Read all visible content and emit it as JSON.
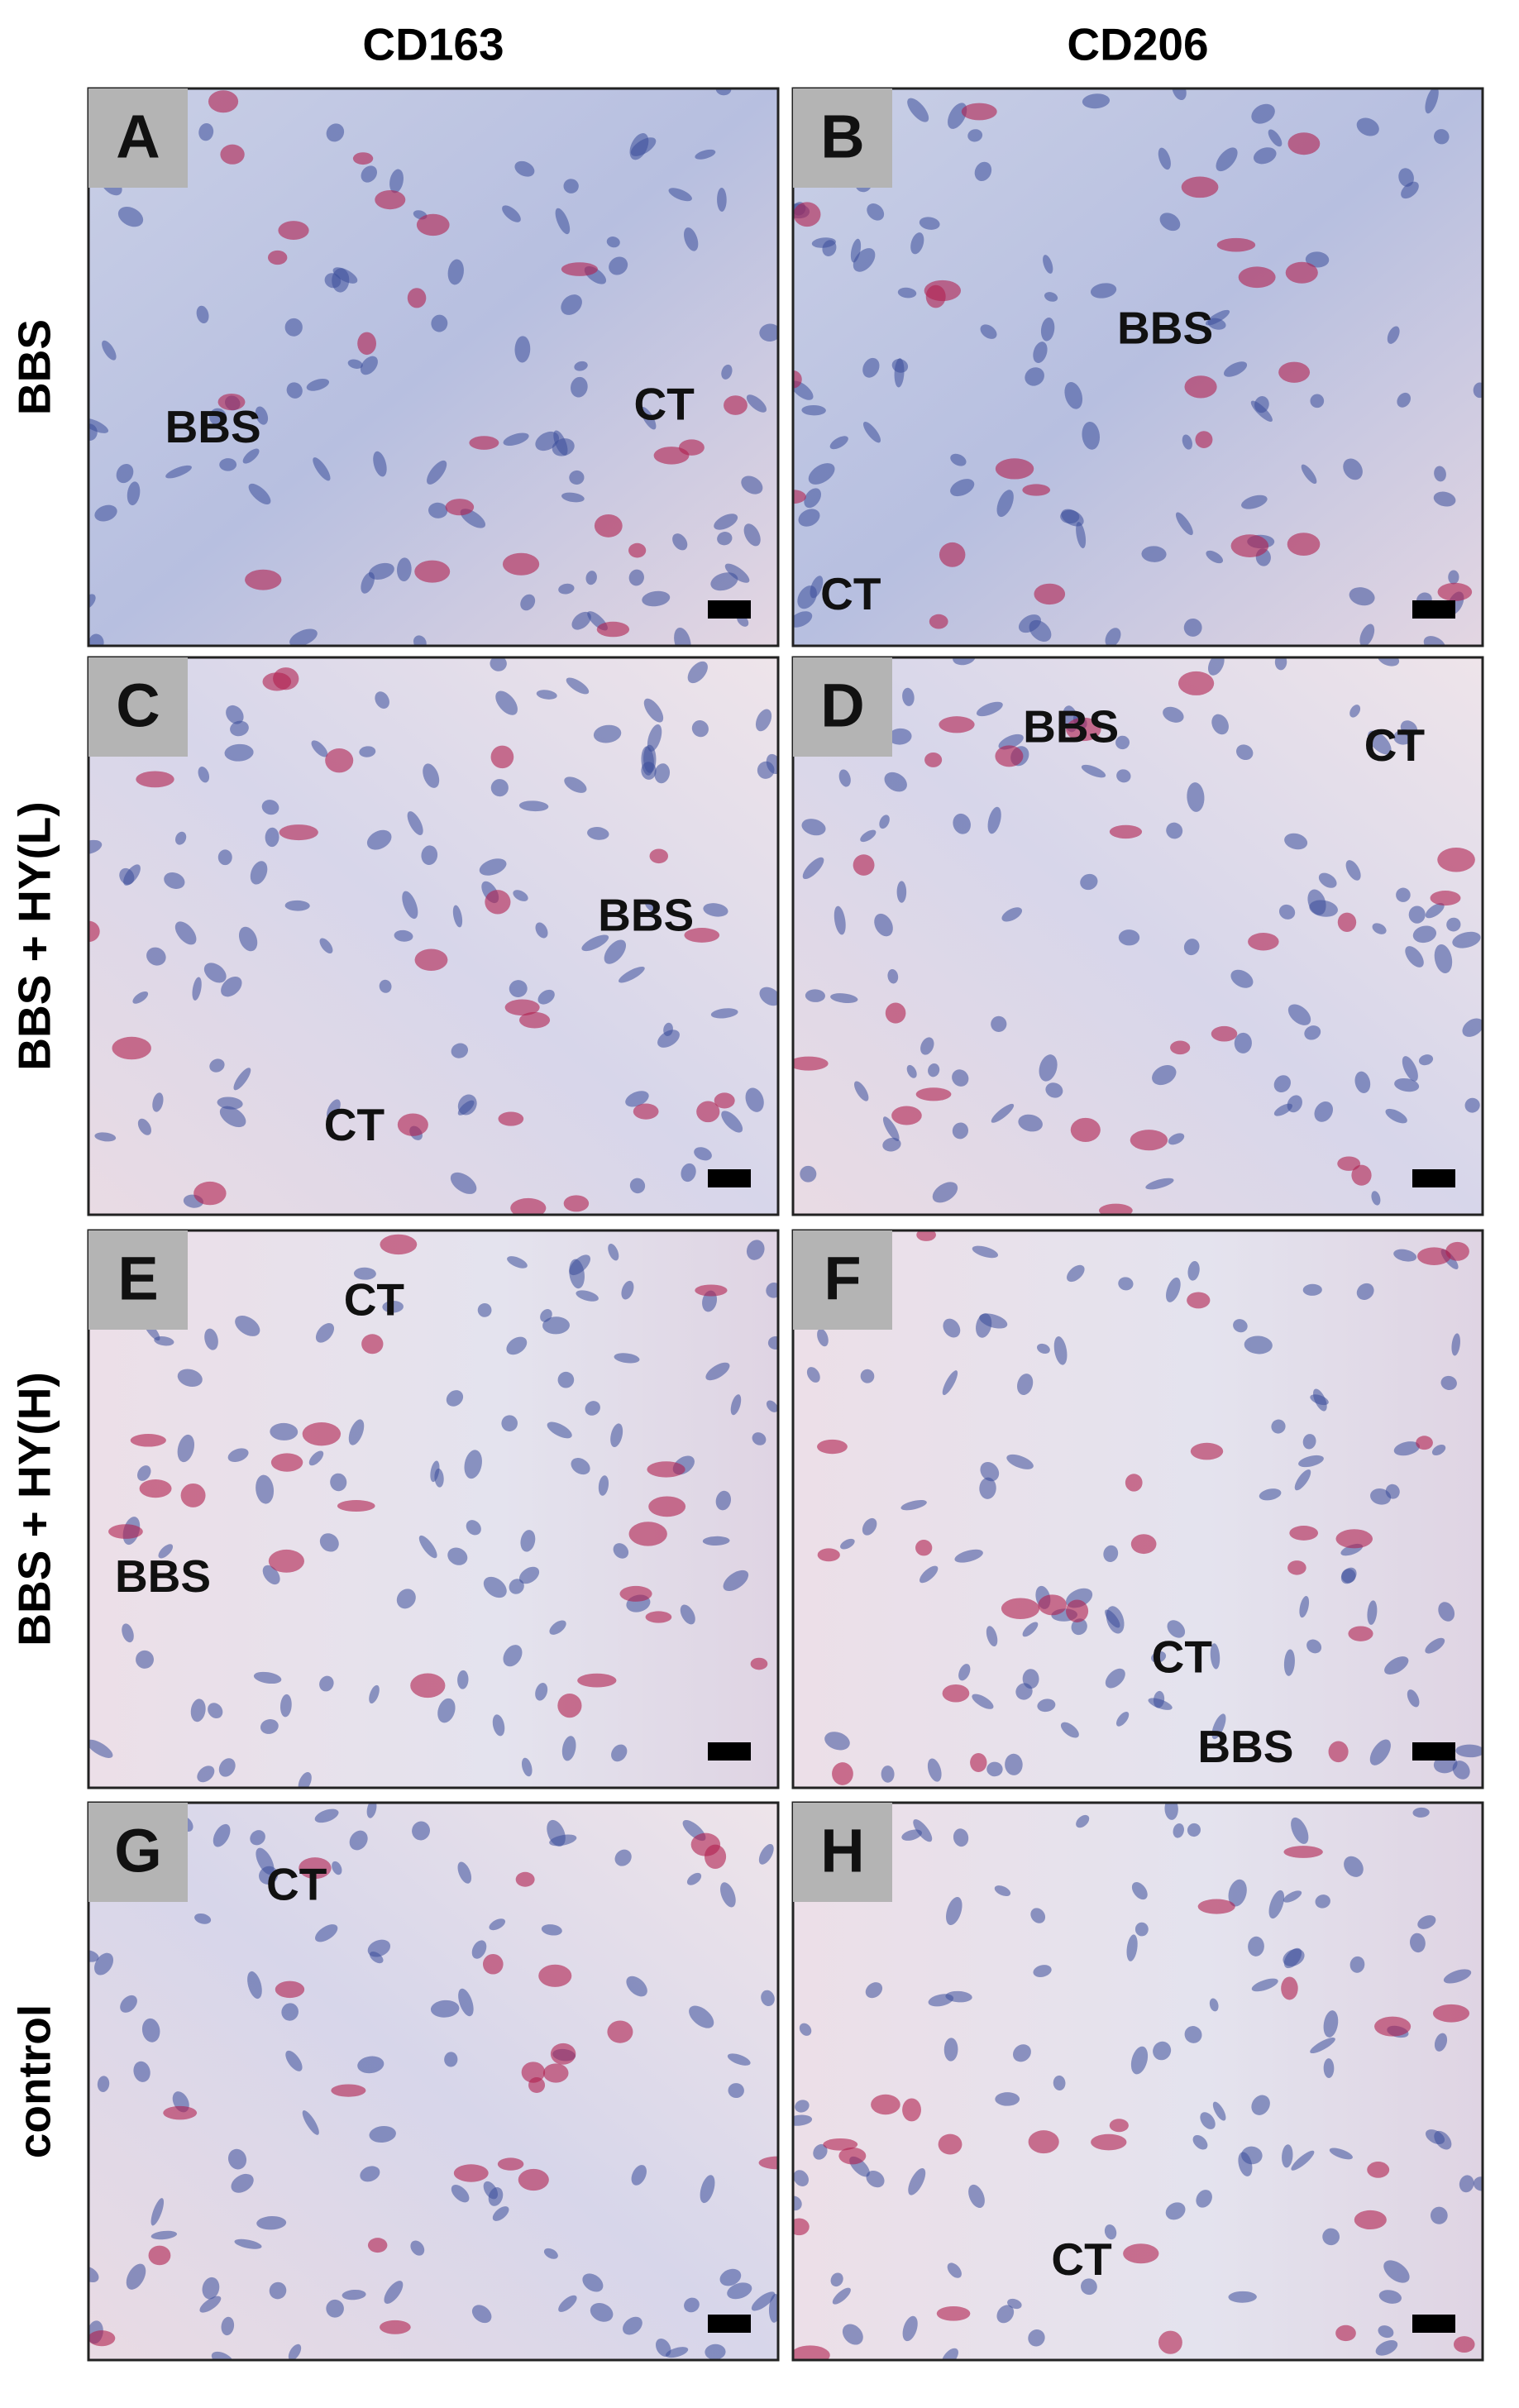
{
  "columns": [
    "CD163",
    "CD206"
  ],
  "rows": [
    "BBS",
    "BBS + HY(L)",
    "BBS + HY(H)",
    "control"
  ],
  "panels": [
    {
      "letter": "A",
      "labels": [
        "BBS",
        "CT"
      ]
    },
    {
      "letter": "B",
      "labels": [
        "BBS",
        "CT"
      ]
    },
    {
      "letter": "C",
      "labels": [
        "BBS",
        "CT"
      ]
    },
    {
      "letter": "D",
      "labels": [
        "BBS",
        "CT"
      ]
    },
    {
      "letter": "E",
      "labels": [
        "CT",
        "BBS"
      ]
    },
    {
      "letter": "F",
      "labels": [
        "CT",
        "BBS"
      ]
    },
    {
      "letter": "G",
      "labels": [
        "CT"
      ]
    },
    {
      "letter": "H",
      "labels": [
        "CT"
      ]
    }
  ]
}
